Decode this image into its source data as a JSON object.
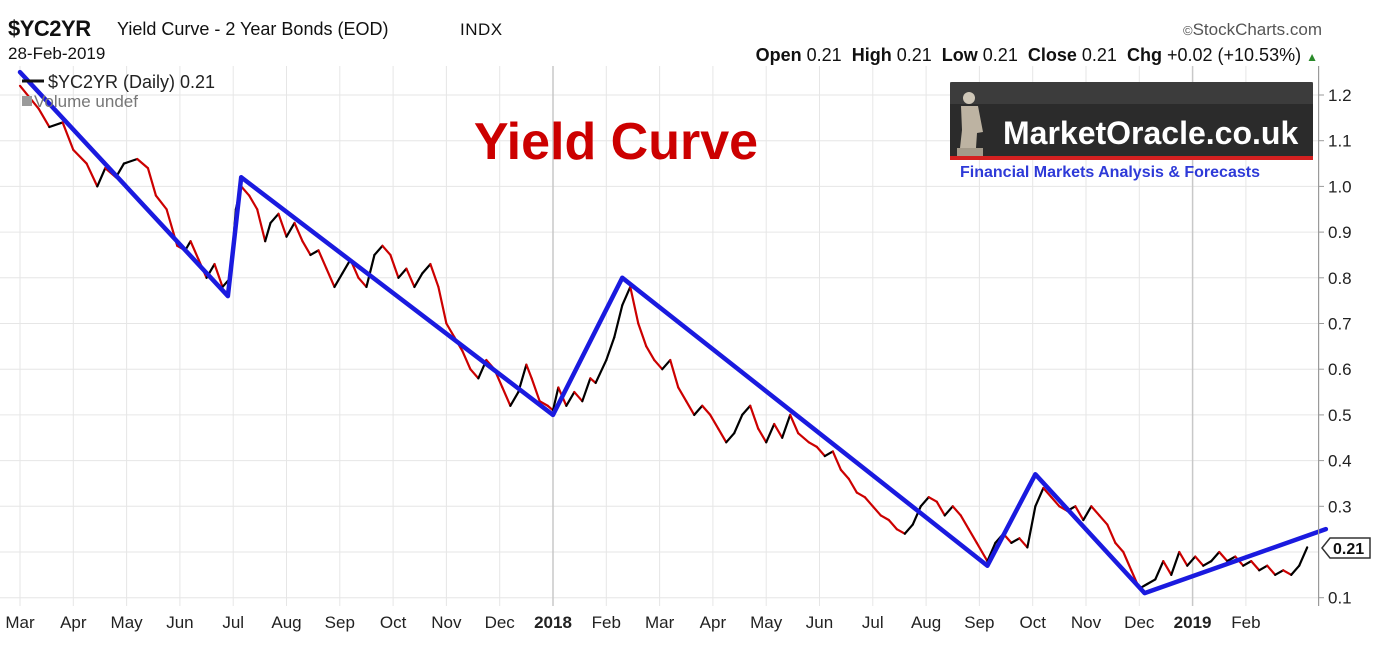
{
  "header": {
    "symbol": "$YC2YR",
    "description": "Yield Curve - 2 Year Bonds (EOD)",
    "exchange": "INDX",
    "date": "28-Feb-2019",
    "brand": "StockCharts.com",
    "open_label": "Open",
    "open": "0.21",
    "high_label": "High",
    "high": "0.21",
    "low_label": "Low",
    "low": "0.21",
    "close_label": "Close",
    "close": "0.21",
    "chg_label": "Chg",
    "chg": "+0.02 (+10.53%)",
    "up_icon": "triangle-up-icon"
  },
  "legend": {
    "series_label": "$YC2YR (Daily) 0.21",
    "volume_label": "Volume undef"
  },
  "annotation_title": "Yield Curve",
  "logo": {
    "name": "MarketOracle.co.uk",
    "tagline": "Financial Markets Analysis & Forecasts"
  },
  "colors": {
    "up": "#000000",
    "down": "#cc0000",
    "trend": "#1a1adf",
    "title": "#cc0000",
    "grid": "#e6e6e6"
  },
  "chart_data": {
    "type": "line",
    "last_value_label": "0.21",
    "ylim": [
      0.08,
      1.25
    ],
    "yticks": [
      1.2,
      1.1,
      1.0,
      0.9,
      0.8,
      0.7,
      0.6,
      0.5,
      0.4,
      0.3,
      0.1
    ],
    "xlabels": [
      {
        "label": "Mar",
        "t": 0.0,
        "bold": false
      },
      {
        "label": "Apr",
        "t": 1.0,
        "bold": false
      },
      {
        "label": "May",
        "t": 2.0,
        "bold": false
      },
      {
        "label": "Jun",
        "t": 3.0,
        "bold": false
      },
      {
        "label": "Jul",
        "t": 4.0,
        "bold": false
      },
      {
        "label": "Aug",
        "t": 5.0,
        "bold": false
      },
      {
        "label": "Sep",
        "t": 6.0,
        "bold": false
      },
      {
        "label": "Oct",
        "t": 7.0,
        "bold": false
      },
      {
        "label": "Nov",
        "t": 8.0,
        "bold": false
      },
      {
        "label": "Dec",
        "t": 9.0,
        "bold": false
      },
      {
        "label": "2018",
        "t": 10.0,
        "bold": true
      },
      {
        "label": "Feb",
        "t": 11.0,
        "bold": false
      },
      {
        "label": "Mar",
        "t": 12.0,
        "bold": false
      },
      {
        "label": "Apr",
        "t": 13.0,
        "bold": false
      },
      {
        "label": "May",
        "t": 14.0,
        "bold": false
      },
      {
        "label": "Jun",
        "t": 15.0,
        "bold": false
      },
      {
        "label": "Jul",
        "t": 16.0,
        "bold": false
      },
      {
        "label": "Aug",
        "t": 17.0,
        "bold": false
      },
      {
        "label": "Sep",
        "t": 18.0,
        "bold": false
      },
      {
        "label": "Oct",
        "t": 19.0,
        "bold": false
      },
      {
        "label": "Nov",
        "t": 20.0,
        "bold": false
      },
      {
        "label": "Dec",
        "t": 21.0,
        "bold": false
      },
      {
        "label": "2019",
        "t": 22.0,
        "bold": true
      },
      {
        "label": "Feb",
        "t": 23.0,
        "bold": false
      }
    ],
    "series": [
      {
        "values": [
          [
            0.0,
            1.22
          ],
          [
            0.35,
            1.17
          ],
          [
            0.55,
            1.13
          ],
          [
            0.8,
            1.14
          ],
          [
            1.0,
            1.08
          ],
          [
            1.25,
            1.05
          ],
          [
            1.45,
            1.0
          ],
          [
            1.6,
            1.04
          ],
          [
            1.8,
            1.02
          ],
          [
            1.95,
            1.05
          ],
          [
            2.2,
            1.06
          ],
          [
            2.4,
            1.04
          ],
          [
            2.55,
            0.98
          ],
          [
            2.75,
            0.95
          ],
          [
            2.95,
            0.87
          ],
          [
            3.1,
            0.86
          ],
          [
            3.2,
            0.88
          ],
          [
            3.35,
            0.84
          ],
          [
            3.5,
            0.8
          ],
          [
            3.65,
            0.83
          ],
          [
            3.8,
            0.78
          ],
          [
            3.95,
            0.8
          ],
          [
            4.05,
            0.95
          ],
          [
            4.15,
            1.0
          ],
          [
            4.3,
            0.98
          ],
          [
            4.45,
            0.95
          ],
          [
            4.6,
            0.88
          ],
          [
            4.7,
            0.92
          ],
          [
            4.85,
            0.94
          ],
          [
            5.0,
            0.89
          ],
          [
            5.15,
            0.92
          ],
          [
            5.3,
            0.88
          ],
          [
            5.45,
            0.85
          ],
          [
            5.6,
            0.86
          ],
          [
            5.75,
            0.82
          ],
          [
            5.9,
            0.78
          ],
          [
            6.05,
            0.81
          ],
          [
            6.2,
            0.84
          ],
          [
            6.35,
            0.8
          ],
          [
            6.5,
            0.78
          ],
          [
            6.65,
            0.85
          ],
          [
            6.8,
            0.87
          ],
          [
            6.95,
            0.85
          ],
          [
            7.1,
            0.8
          ],
          [
            7.25,
            0.82
          ],
          [
            7.4,
            0.78
          ],
          [
            7.55,
            0.81
          ],
          [
            7.7,
            0.83
          ],
          [
            7.85,
            0.78
          ],
          [
            8.0,
            0.7
          ],
          [
            8.15,
            0.67
          ],
          [
            8.3,
            0.64
          ],
          [
            8.45,
            0.6
          ],
          [
            8.6,
            0.58
          ],
          [
            8.75,
            0.62
          ],
          [
            8.9,
            0.6
          ],
          [
            9.05,
            0.56
          ],
          [
            9.2,
            0.52
          ],
          [
            9.35,
            0.55
          ],
          [
            9.5,
            0.61
          ],
          [
            9.6,
            0.58
          ],
          [
            9.75,
            0.53
          ],
          [
            9.9,
            0.52
          ],
          [
            10.0,
            0.51
          ],
          [
            10.1,
            0.56
          ],
          [
            10.25,
            0.52
          ],
          [
            10.4,
            0.55
          ],
          [
            10.55,
            0.53
          ],
          [
            10.7,
            0.58
          ],
          [
            10.8,
            0.57
          ],
          [
            11.0,
            0.62
          ],
          [
            11.15,
            0.67
          ],
          [
            11.3,
            0.74
          ],
          [
            11.45,
            0.78
          ],
          [
            11.6,
            0.7
          ],
          [
            11.75,
            0.65
          ],
          [
            11.9,
            0.62
          ],
          [
            12.05,
            0.6
          ],
          [
            12.2,
            0.62
          ],
          [
            12.35,
            0.56
          ],
          [
            12.5,
            0.53
          ],
          [
            12.65,
            0.5
          ],
          [
            12.8,
            0.52
          ],
          [
            12.95,
            0.5
          ],
          [
            13.1,
            0.47
          ],
          [
            13.25,
            0.44
          ],
          [
            13.4,
            0.46
          ],
          [
            13.55,
            0.5
          ],
          [
            13.7,
            0.52
          ],
          [
            13.85,
            0.47
          ],
          [
            14.0,
            0.44
          ],
          [
            14.15,
            0.48
          ],
          [
            14.3,
            0.45
          ],
          [
            14.45,
            0.5
          ],
          [
            14.6,
            0.46
          ],
          [
            14.8,
            0.44
          ],
          [
            14.95,
            0.43
          ],
          [
            15.1,
            0.41
          ],
          [
            15.25,
            0.42
          ],
          [
            15.4,
            0.38
          ],
          [
            15.55,
            0.36
          ],
          [
            15.7,
            0.33
          ],
          [
            15.85,
            0.32
          ],
          [
            16.0,
            0.3
          ],
          [
            16.15,
            0.28
          ],
          [
            16.3,
            0.27
          ],
          [
            16.45,
            0.25
          ],
          [
            16.6,
            0.24
          ],
          [
            16.75,
            0.26
          ],
          [
            16.9,
            0.3
          ],
          [
            17.05,
            0.32
          ],
          [
            17.2,
            0.31
          ],
          [
            17.35,
            0.28
          ],
          [
            17.5,
            0.3
          ],
          [
            17.65,
            0.28
          ],
          [
            17.8,
            0.25
          ],
          [
            17.95,
            0.22
          ],
          [
            18.05,
            0.2
          ],
          [
            18.15,
            0.18
          ],
          [
            18.3,
            0.22
          ],
          [
            18.45,
            0.24
          ],
          [
            18.6,
            0.22
          ],
          [
            18.75,
            0.23
          ],
          [
            18.9,
            0.21
          ],
          [
            19.05,
            0.3
          ],
          [
            19.2,
            0.34
          ],
          [
            19.35,
            0.32
          ],
          [
            19.5,
            0.3
          ],
          [
            19.65,
            0.29
          ],
          [
            19.8,
            0.3
          ],
          [
            19.95,
            0.27
          ],
          [
            20.1,
            0.3
          ],
          [
            20.25,
            0.28
          ],
          [
            20.4,
            0.26
          ],
          [
            20.55,
            0.22
          ],
          [
            20.7,
            0.2
          ],
          [
            20.85,
            0.16
          ],
          [
            21.0,
            0.12
          ],
          [
            21.15,
            0.13
          ],
          [
            21.3,
            0.14
          ],
          [
            21.45,
            0.18
          ],
          [
            21.6,
            0.15
          ],
          [
            21.75,
            0.2
          ],
          [
            21.9,
            0.17
          ],
          [
            22.05,
            0.19
          ],
          [
            22.2,
            0.17
          ],
          [
            22.35,
            0.18
          ],
          [
            22.5,
            0.2
          ],
          [
            22.65,
            0.18
          ],
          [
            22.8,
            0.19
          ],
          [
            22.95,
            0.17
          ],
          [
            23.1,
            0.18
          ],
          [
            23.25,
            0.16
          ],
          [
            23.4,
            0.17
          ],
          [
            23.55,
            0.15
          ],
          [
            23.7,
            0.16
          ],
          [
            23.85,
            0.15
          ],
          [
            24.0,
            0.17
          ],
          [
            24.15,
            0.21
          ]
        ]
      }
    ],
    "trendlines": [
      [
        0.0,
        1.25
      ],
      [
        3.9,
        0.76
      ],
      [
        4.15,
        1.02
      ],
      [
        10.0,
        0.5
      ],
      [
        11.3,
        0.8
      ],
      [
        18.15,
        0.17
      ],
      [
        19.05,
        0.37
      ],
      [
        21.1,
        0.11
      ],
      [
        24.5,
        0.25
      ]
    ]
  }
}
